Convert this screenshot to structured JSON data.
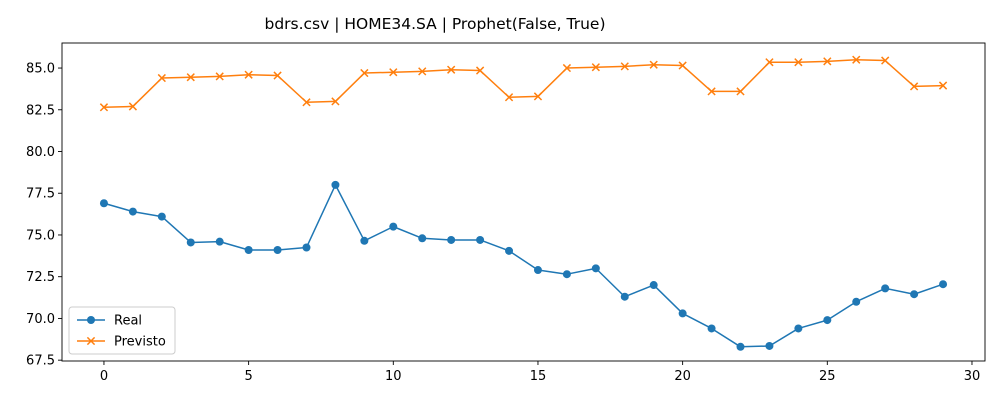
{
  "chart_data": {
    "type": "line",
    "title": "bdrs.csv | HOME34.SA | Prophet(False, True)",
    "xlabel": "",
    "ylabel": "",
    "xlim": [
      -1.45,
      30.45
    ],
    "ylim": [
      67.45,
      86.5
    ],
    "xticks": [
      0,
      5,
      10,
      15,
      20,
      25,
      30
    ],
    "yticks": [
      67.5,
      70.0,
      72.5,
      75.0,
      77.5,
      80.0,
      82.5,
      85.0
    ],
    "ytick_labels": [
      "67.5",
      "70.0",
      "72.5",
      "75.0",
      "77.5",
      "80.0",
      "82.5",
      "85.0"
    ],
    "grid": false,
    "legend_position": "lower-left",
    "x": [
      0,
      1,
      2,
      3,
      4,
      5,
      6,
      7,
      8,
      9,
      10,
      11,
      12,
      13,
      14,
      15,
      16,
      17,
      18,
      19,
      20,
      21,
      22,
      23,
      24,
      25,
      26,
      27,
      28,
      29
    ],
    "series": [
      {
        "name": "Real",
        "color": "#1f77b4",
        "marker": "circle",
        "values": [
          76.9,
          76.4,
          76.1,
          74.55,
          74.6,
          74.1,
          74.1,
          74.25,
          78.0,
          74.65,
          75.5,
          74.8,
          74.7,
          74.7,
          74.05,
          72.9,
          72.65,
          73.0,
          71.3,
          72.0,
          70.3,
          69.4,
          68.3,
          68.35,
          69.4,
          69.9,
          71.0,
          71.8,
          71.45,
          72.05
        ]
      },
      {
        "name": "Previsto",
        "color": "#ff7f0e",
        "marker": "x",
        "values": [
          82.65,
          82.7,
          84.4,
          84.45,
          84.5,
          84.6,
          84.55,
          82.95,
          83.0,
          84.7,
          84.75,
          84.8,
          84.9,
          84.85,
          83.25,
          83.3,
          85.0,
          85.05,
          85.1,
          85.2,
          85.15,
          83.6,
          83.6,
          85.35,
          85.35,
          85.4,
          85.5,
          85.45,
          83.9,
          83.95
        ]
      }
    ]
  }
}
